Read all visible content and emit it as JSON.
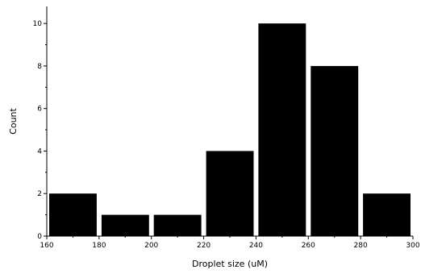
{
  "chart_data": {
    "type": "bar",
    "bins": [
      {
        "start": 160,
        "end": 180,
        "count": 2
      },
      {
        "start": 180,
        "end": 200,
        "count": 1
      },
      {
        "start": 200,
        "end": 220,
        "count": 1
      },
      {
        "start": 220,
        "end": 240,
        "count": 4
      },
      {
        "start": 240,
        "end": 260,
        "count": 10
      },
      {
        "start": 260,
        "end": 280,
        "count": 8
      },
      {
        "start": 280,
        "end": 300,
        "count": 2
      }
    ],
    "xlabel": "Droplet size (uM)",
    "ylabel": "Count",
    "xlim": [
      160,
      300
    ],
    "ylim": [
      0,
      10.8
    ],
    "x_ticks": [
      160,
      180,
      200,
      220,
      240,
      260,
      280,
      300
    ],
    "y_ticks": [
      0,
      2,
      4,
      6,
      8,
      10
    ],
    "grid": false,
    "colors": {
      "bar": "#000000",
      "axis": "#000000",
      "background": "#ffffff"
    }
  }
}
